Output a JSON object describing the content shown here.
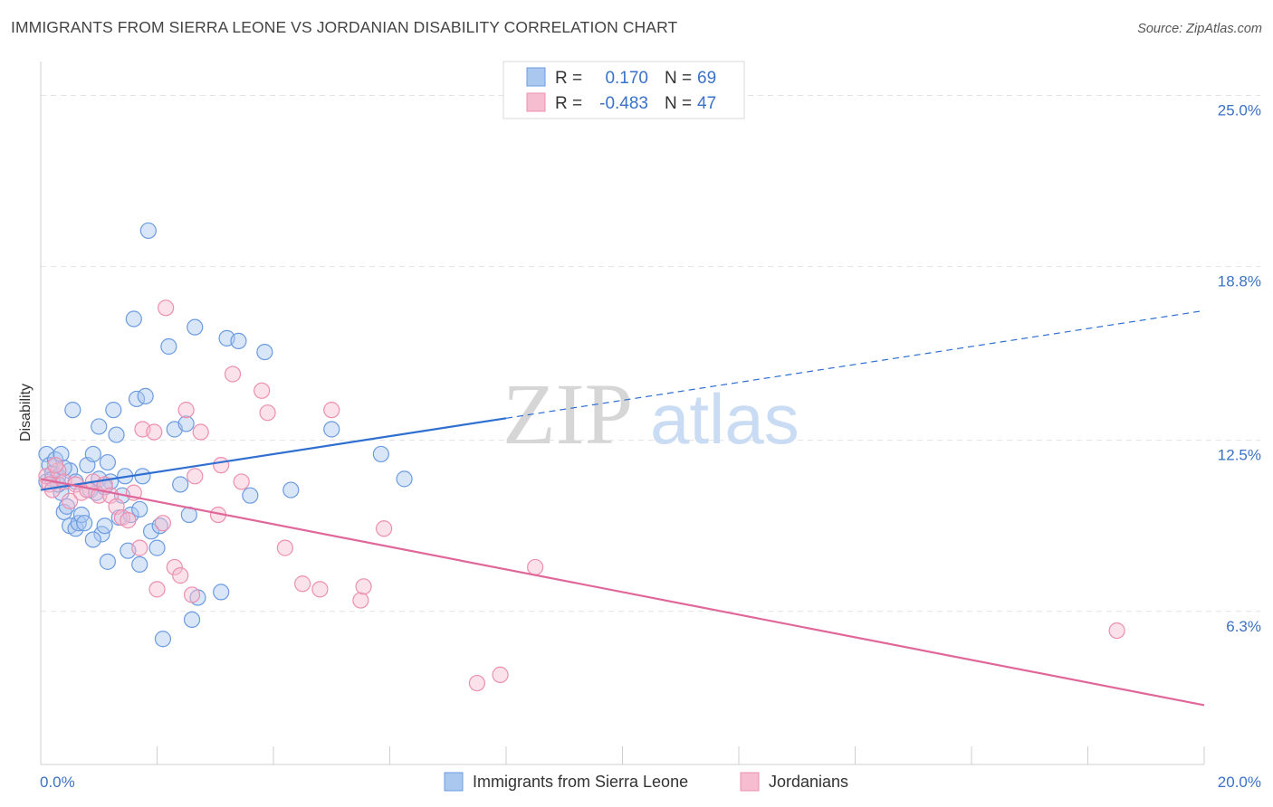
{
  "header": {
    "title": "IMMIGRANTS FROM SIERRA LEONE VS JORDANIAN DISABILITY CORRELATION CHART",
    "source": "Source: ZipAtlas.com"
  },
  "watermark": {
    "zip": "ZIP",
    "atlas": "atlas"
  },
  "colors": {
    "blue_fill": "#aac8ef",
    "blue_stroke": "#6b9be0",
    "blue_line": "#2f6fd0",
    "pink_fill": "#f6bcd0",
    "pink_stroke": "#ec8fb0",
    "pink_line": "#e0679a",
    "grid": "#e3e3e3",
    "label": "#3a72c6"
  },
  "legend": {
    "r_label": "R =",
    "n_label": "N =",
    "rows": [
      {
        "r": "0.170",
        "n": "69"
      },
      {
        "r": "-0.483",
        "n": "47"
      }
    ]
  },
  "chart_data": {
    "type": "scatter",
    "title": "IMMIGRANTS FROM SIERRA LEONE VS JORDANIAN DISABILITY CORRELATION CHART",
    "ylabel": "Disability",
    "xlabel": "",
    "x_tick_labels": [
      "0.0%",
      "20.0%"
    ],
    "y_tick_labels": [
      "25.0%",
      "18.8%",
      "12.5%",
      "6.3%"
    ],
    "y_ticks": [
      25.0,
      18.8,
      12.5,
      6.3
    ],
    "xlim": [
      0,
      20
    ],
    "ylim": [
      0.75,
      26.0
    ],
    "grid": "horizontal dashed",
    "legend_position": "top-center",
    "series": [
      {
        "name": "Immigrants from Sierra Leone",
        "color": "blue",
        "r": 0.17,
        "n": 69,
        "trend": {
          "x0": 0,
          "y0": 10.7,
          "x1": 8.0,
          "y1": 13.3,
          "dash_x1": 20,
          "dash_y1": 17.2
        },
        "points": [
          [
            0.1,
            12.0
          ],
          [
            0.15,
            11.6
          ],
          [
            0.2,
            11.3
          ],
          [
            0.25,
            11.8
          ],
          [
            0.1,
            11.0
          ],
          [
            0.3,
            11.2
          ],
          [
            0.35,
            10.6
          ],
          [
            0.4,
            9.9
          ],
          [
            0.45,
            10.1
          ],
          [
            0.5,
            11.4
          ],
          [
            0.5,
            9.4
          ],
          [
            0.6,
            9.3
          ],
          [
            0.65,
            9.5
          ],
          [
            0.7,
            9.8
          ],
          [
            0.75,
            9.5
          ],
          [
            0.8,
            11.6
          ],
          [
            0.85,
            10.7
          ],
          [
            0.9,
            12.0
          ],
          [
            0.95,
            10.6
          ],
          [
            1.0,
            11.1
          ],
          [
            1.0,
            13.0
          ],
          [
            1.05,
            9.1
          ],
          [
            1.1,
            9.4
          ],
          [
            1.15,
            11.7
          ],
          [
            1.2,
            11.0
          ],
          [
            1.25,
            13.6
          ],
          [
            1.3,
            12.7
          ],
          [
            1.35,
            9.7
          ],
          [
            1.4,
            10.5
          ],
          [
            1.45,
            11.2
          ],
          [
            1.5,
            8.5
          ],
          [
            1.55,
            9.8
          ],
          [
            1.6,
            16.9
          ],
          [
            1.65,
            14.0
          ],
          [
            1.7,
            10.0
          ],
          [
            1.75,
            11.2
          ],
          [
            1.8,
            14.1
          ],
          [
            1.85,
            20.1
          ],
          [
            1.9,
            9.2
          ],
          [
            2.0,
            8.6
          ],
          [
            2.05,
            9.4
          ],
          [
            2.1,
            5.3
          ],
          [
            2.2,
            15.9
          ],
          [
            2.3,
            12.9
          ],
          [
            2.4,
            10.9
          ],
          [
            2.5,
            13.1
          ],
          [
            2.55,
            9.8
          ],
          [
            2.6,
            6.0
          ],
          [
            2.65,
            16.6
          ],
          [
            2.7,
            6.8
          ],
          [
            3.1,
            7.0
          ],
          [
            3.2,
            16.2
          ],
          [
            3.4,
            16.1
          ],
          [
            3.6,
            10.5
          ],
          [
            3.85,
            15.7
          ],
          [
            4.3,
            10.7
          ],
          [
            5.0,
            12.9
          ],
          [
            5.85,
            12.0
          ],
          [
            6.25,
            11.1
          ],
          [
            0.55,
            13.6
          ],
          [
            0.35,
            12.0
          ],
          [
            0.2,
            11.1
          ],
          [
            0.3,
            10.9
          ],
          [
            0.9,
            8.9
          ],
          [
            1.15,
            8.1
          ],
          [
            1.7,
            8.0
          ],
          [
            0.6,
            11.0
          ],
          [
            1.1,
            10.8
          ],
          [
            0.4,
            11.5
          ]
        ]
      },
      {
        "name": "Jordanians",
        "color": "pink",
        "r": -0.483,
        "n": 47,
        "trend": {
          "x0": 0,
          "y0": 11.1,
          "x1": 20,
          "y1": 2.9
        },
        "points": [
          [
            0.1,
            11.2
          ],
          [
            0.15,
            10.9
          ],
          [
            0.2,
            10.7
          ],
          [
            0.3,
            11.4
          ],
          [
            0.4,
            11.0
          ],
          [
            0.5,
            10.3
          ],
          [
            0.6,
            10.9
          ],
          [
            0.7,
            10.6
          ],
          [
            0.8,
            10.7
          ],
          [
            0.9,
            11.0
          ],
          [
            1.0,
            10.5
          ],
          [
            1.1,
            10.9
          ],
          [
            1.2,
            10.5
          ],
          [
            1.3,
            10.1
          ],
          [
            1.4,
            9.7
          ],
          [
            1.5,
            9.6
          ],
          [
            1.6,
            10.6
          ],
          [
            1.7,
            8.6
          ],
          [
            1.75,
            12.9
          ],
          [
            1.95,
            12.8
          ],
          [
            2.0,
            7.1
          ],
          [
            2.1,
            9.5
          ],
          [
            2.15,
            17.3
          ],
          [
            2.3,
            7.9
          ],
          [
            2.4,
            7.6
          ],
          [
            2.5,
            13.6
          ],
          [
            2.6,
            6.9
          ],
          [
            2.65,
            11.2
          ],
          [
            2.75,
            12.8
          ],
          [
            3.05,
            9.8
          ],
          [
            3.1,
            11.6
          ],
          [
            3.3,
            14.9
          ],
          [
            3.45,
            11.0
          ],
          [
            3.8,
            14.3
          ],
          [
            3.9,
            13.5
          ],
          [
            4.2,
            8.6
          ],
          [
            4.5,
            7.3
          ],
          [
            4.8,
            7.1
          ],
          [
            5.0,
            13.6
          ],
          [
            5.5,
            6.7
          ],
          [
            5.55,
            7.2
          ],
          [
            5.9,
            9.3
          ],
          [
            7.5,
            3.7
          ],
          [
            7.9,
            4.0
          ],
          [
            8.5,
            7.9
          ],
          [
            18.5,
            5.6
          ],
          [
            0.25,
            11.6
          ]
        ]
      }
    ]
  },
  "bottom_legend": [
    {
      "label": "Immigrants from Sierra Leone"
    },
    {
      "label": "Jordanians"
    }
  ]
}
